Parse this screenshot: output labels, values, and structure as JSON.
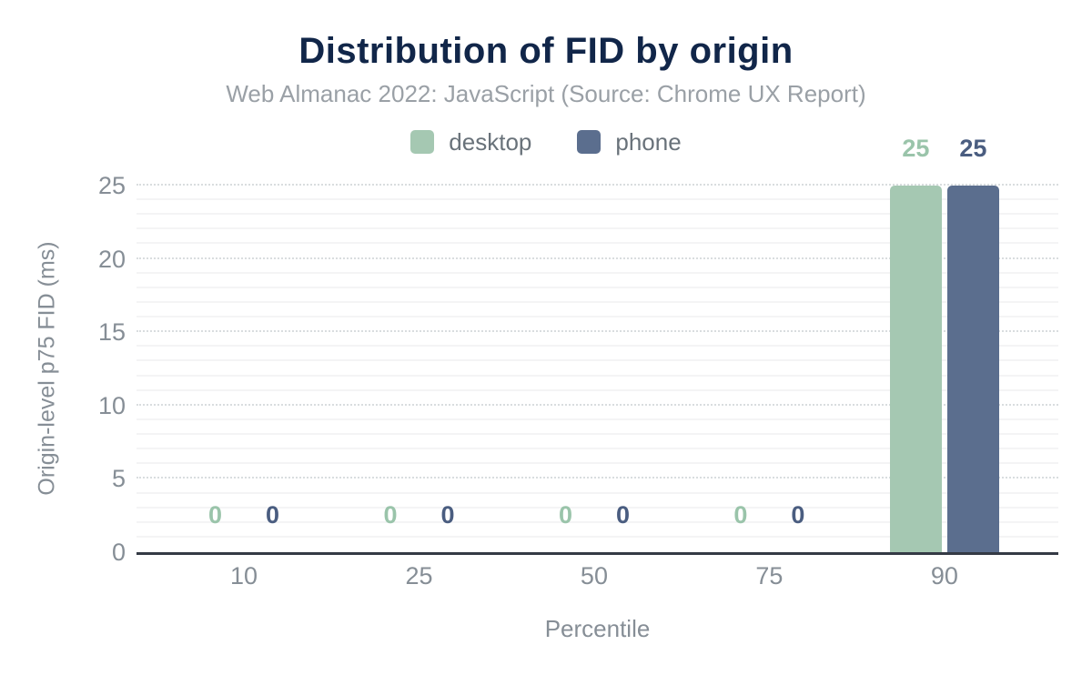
{
  "chart_data": {
    "type": "bar",
    "title": "Distribution of FID by origin",
    "subtitle": "Web Almanac 2022: JavaScript (Source: Chrome UX Report)",
    "xlabel": "Percentile",
    "ylabel": "Origin-level p75 FID (ms)",
    "categories": [
      "10",
      "25",
      "50",
      "75",
      "90"
    ],
    "series": [
      {
        "name": "desktop",
        "color": "#a5c8b2",
        "label_color": "#9ac4aa",
        "values": [
          0,
          0,
          0,
          0,
          25
        ]
      },
      {
        "name": "phone",
        "color": "#5b6e8e",
        "label_color": "#4a5d80",
        "values": [
          0,
          0,
          0,
          0,
          25
        ]
      }
    ],
    "ylim": [
      0,
      25
    ],
    "yticks": [
      0,
      5,
      10,
      15,
      20,
      25
    ],
    "grid": {
      "minor_step": 1,
      "major_step": 5,
      "major_style": "dotted",
      "minor_style": "solid"
    },
    "legend_position": "top",
    "value_labels": true
  },
  "colors": {
    "title": "#112649",
    "subtitle": "#9aa0a6",
    "axis_text": "#868e96",
    "legend_text": "#69727a",
    "baseline": "#343a45",
    "grid_major": "#d9dddf",
    "grid_minor": "#f4f4f5",
    "background": "#ffffff"
  }
}
